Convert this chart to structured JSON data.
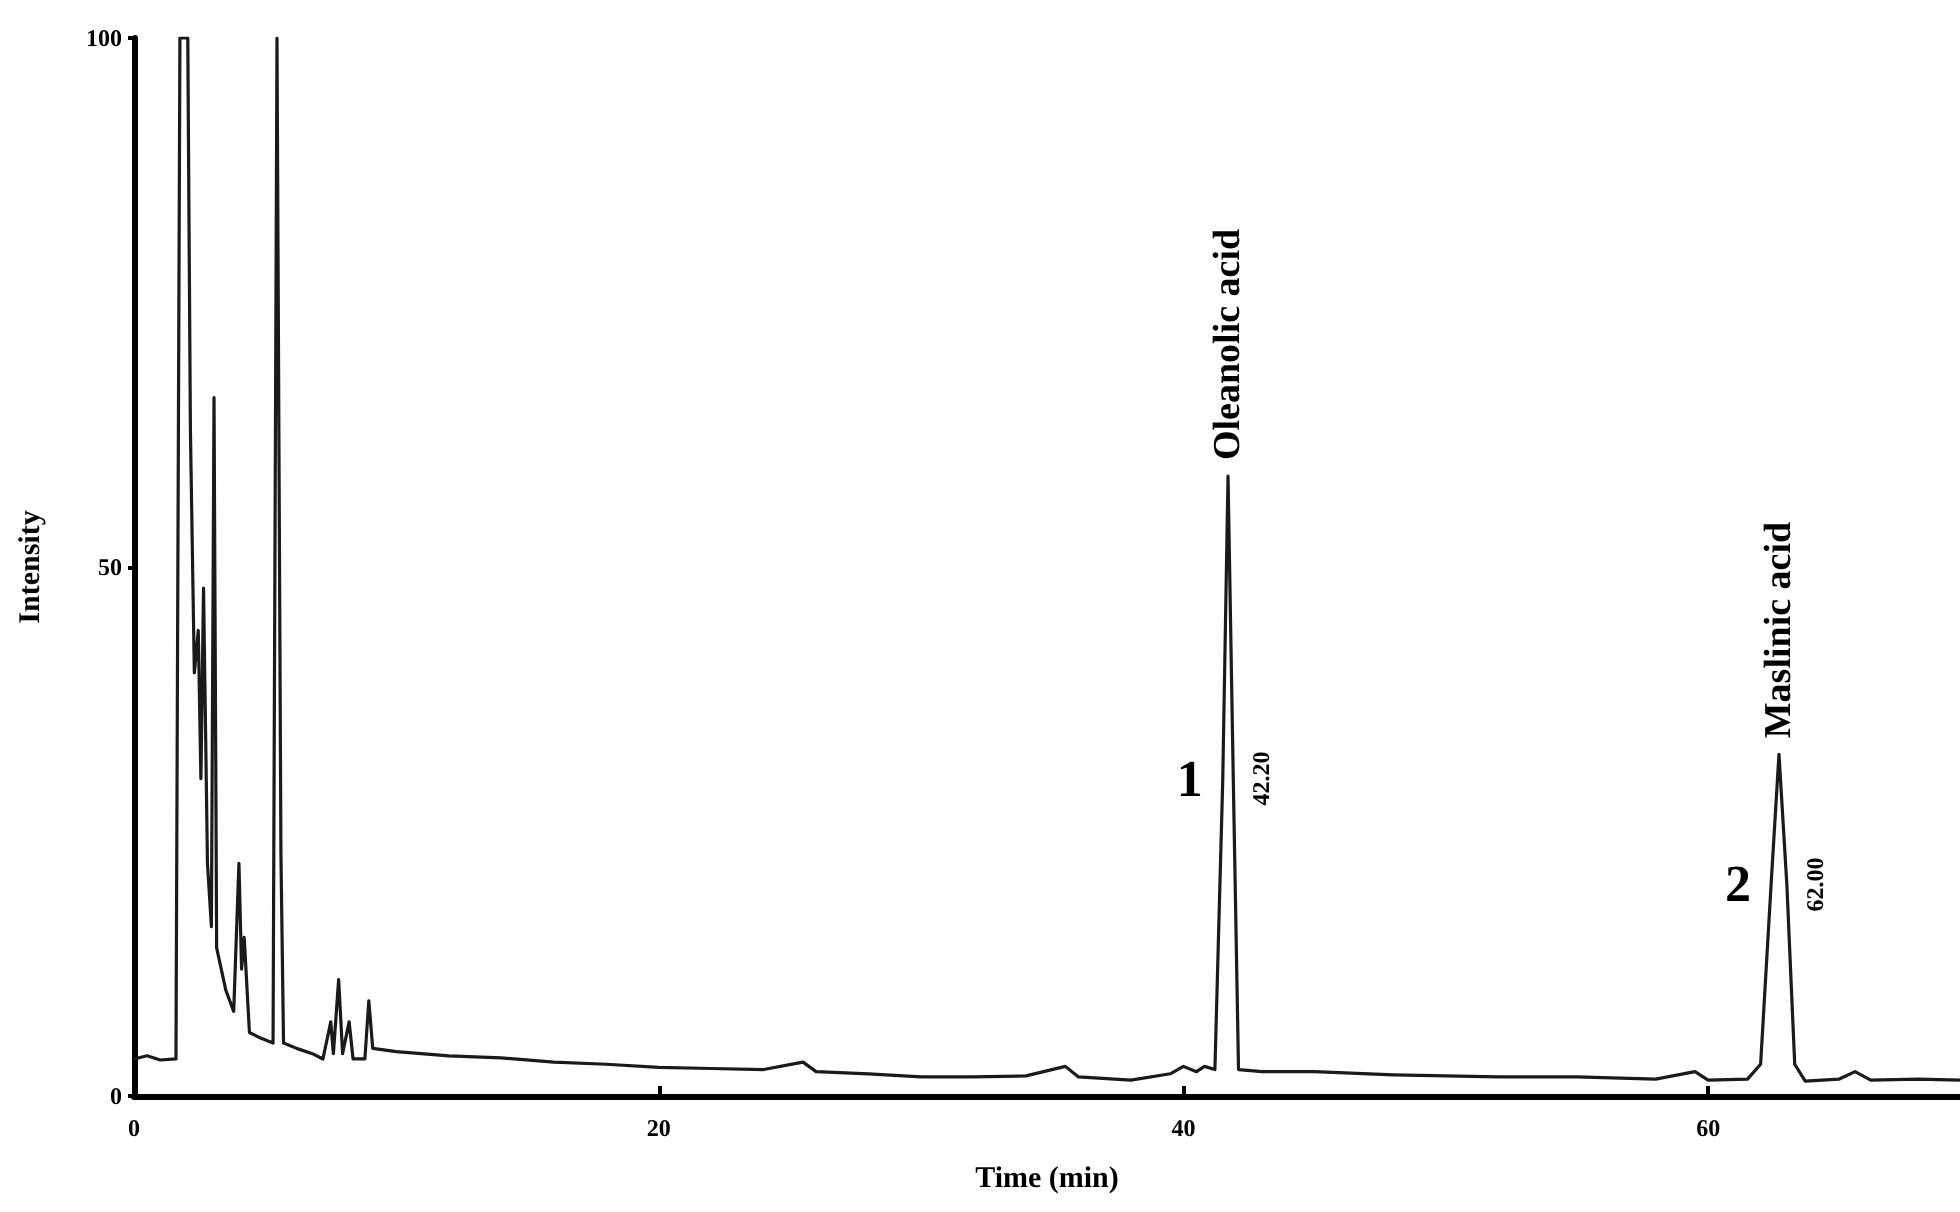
{
  "chart_data": {
    "type": "line",
    "xlabel": "Time (min)",
    "ylabel": "Intensity",
    "xlim": [
      0,
      69.6
    ],
    "xticks": [
      0,
      20,
      40,
      60
    ],
    "ylim": [
      0,
      100
    ],
    "yticks": [
      0,
      50,
      100
    ],
    "grid": false,
    "marker": "none",
    "line_style": "solid",
    "series": [
      {
        "color": "#1a1a1a",
        "x": [
          0,
          0.5,
          1.0,
          1.6,
          1.75,
          2.05,
          2.15,
          2.3,
          2.45,
          2.55,
          2.65,
          2.8,
          2.95,
          3.05,
          3.15,
          3.5,
          3.8,
          4.0,
          4.1,
          4.2,
          4.4,
          4.8,
          5.3,
          5.45,
          5.6,
          5.7,
          6.2,
          6.8,
          7.2,
          7.5,
          7.6,
          7.8,
          7.95,
          8.2,
          8.35,
          8.8,
          8.95,
          9.1,
          10,
          12,
          14,
          16,
          18,
          20,
          22,
          24,
          25.5,
          26,
          28,
          30,
          32,
          34,
          35.5,
          36,
          38,
          39.5,
          40,
          40.5,
          40.8,
          41.2,
          41.5,
          41.7,
          41.9,
          42.1,
          43,
          45,
          48,
          52,
          55,
          58,
          59.5,
          60,
          61.5,
          62.0,
          62.4,
          62.7,
          63.0,
          63.3,
          63.7,
          65,
          65.6,
          66.2,
          68,
          69.6
        ],
        "values": [
          3.5,
          3.8,
          3.4,
          3.5,
          100,
          100,
          63,
          40,
          44,
          30,
          48,
          22,
          16,
          66,
          14,
          10,
          8,
          22,
          12,
          15,
          6,
          5.5,
          5,
          100,
          23,
          5,
          4.5,
          4,
          3.5,
          7,
          4,
          11,
          4,
          7,
          3.5,
          3.5,
          9,
          4.5,
          4.2,
          3.8,
          3.6,
          3.2,
          3,
          2.7,
          2.6,
          2.5,
          3.2,
          2.3,
          2.1,
          1.8,
          1.8,
          1.9,
          2.8,
          1.8,
          1.5,
          2.1,
          2.8,
          2.3,
          2.8,
          2.5,
          30,
          58.6,
          30,
          2.5,
          2.3,
          2.3,
          2,
          1.8,
          1.8,
          1.6,
          2.3,
          1.5,
          1.6,
          3,
          20,
          32.3,
          20,
          3,
          1.4,
          1.6,
          2.3,
          1.5,
          1.6,
          1.5
        ]
      }
    ],
    "annotations": [
      {
        "text": "Oleanolic acid",
        "x": 41.7,
        "y": 58.6
      },
      {
        "text": "1",
        "x": 41.5,
        "y": 30
      },
      {
        "text": "42.20",
        "x": 41.9,
        "y": 30
      },
      {
        "text": "Maslinic acid",
        "x": 62.7,
        "y": 32.3
      },
      {
        "text": "2",
        "x": 62.4,
        "y": 20
      },
      {
        "text": "62.00",
        "x": 63.0,
        "y": 20
      }
    ]
  }
}
